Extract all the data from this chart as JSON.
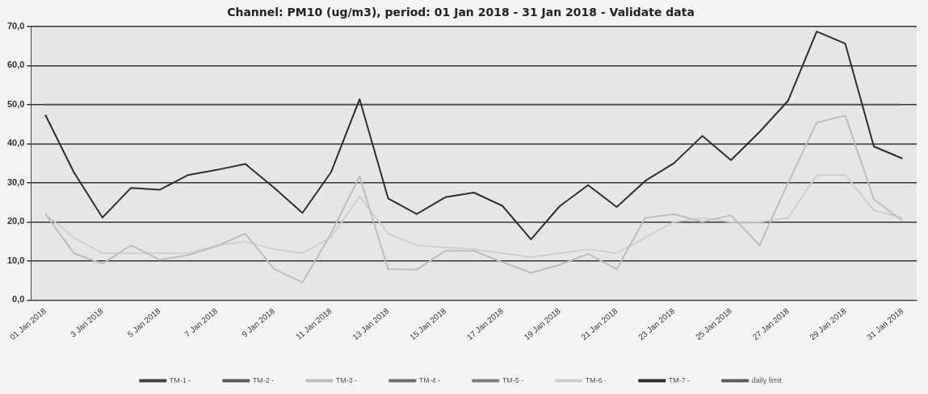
{
  "chart_data": {
    "type": "line",
    "title": "Channel: PM10 (ug/m3), period: 01 Jan 2018 - 31 Jan 2018 - Validate data",
    "categories": [
      "01 Jan 2018",
      null,
      "3 Jan 2018",
      null,
      "5 Jan 2018",
      null,
      "7 Jan 2018",
      null,
      "9 Jan 2018",
      null,
      "11 Jan 2018",
      null,
      "13 Jan 2018",
      null,
      "15 Jan 2018",
      null,
      "17 Jan 2018",
      null,
      "19 Jan 2018",
      null,
      "21 Jan 2018",
      null,
      "23 Jan 2018",
      null,
      "25 Jan 2018",
      null,
      "27 Jan 2018",
      null,
      "29 Jan 2018",
      null,
      "31 Jan 2018"
    ],
    "series": [
      {
        "name": "TM-1 -",
        "color": "#404040",
        "values": [
          null,
          null,
          null,
          null,
          null,
          null,
          null,
          null,
          null,
          null,
          null,
          null,
          null,
          null,
          null,
          null,
          null,
          null,
          null,
          null,
          null,
          null,
          null,
          null,
          null,
          null,
          null,
          null,
          null,
          null,
          null
        ]
      },
      {
        "name": "TM-2 -",
        "color": "#5a5a5a",
        "values": [
          null,
          null,
          null,
          null,
          null,
          null,
          null,
          null,
          null,
          null,
          null,
          null,
          null,
          null,
          null,
          null,
          null,
          null,
          null,
          null,
          null,
          null,
          null,
          null,
          null,
          null,
          null,
          null,
          null,
          null,
          null
        ]
      },
      {
        "name": "TM-3 -",
        "color": "#bdbdbd",
        "values": [
          22,
          12,
          9.3,
          14,
          10.3,
          11.5,
          13.8,
          17,
          8,
          4.5,
          17,
          31.7,
          7.9,
          7.8,
          12.6,
          12.6,
          9.7,
          7,
          9,
          11.8,
          7.9,
          21,
          22,
          20,
          21.7,
          14,
          30,
          45.4,
          47.2,
          25.8,
          20.3
        ]
      },
      {
        "name": "TM-4 -",
        "color": "#6e6e6e",
        "values": [
          null,
          null,
          null,
          null,
          null,
          null,
          null,
          null,
          null,
          null,
          null,
          null,
          null,
          null,
          null,
          null,
          null,
          null,
          null,
          null,
          null,
          null,
          null,
          null,
          null,
          null,
          null,
          null,
          null,
          null,
          null
        ]
      },
      {
        "name": "TM-5 -",
        "color": "#7e7e7e",
        "values": [
          null,
          null,
          null,
          null,
          null,
          null,
          null,
          null,
          null,
          null,
          null,
          null,
          null,
          null,
          null,
          null,
          null,
          null,
          null,
          null,
          null,
          null,
          null,
          null,
          null,
          null,
          null,
          null,
          null,
          null,
          null
        ]
      },
      {
        "name": "TM-6 -",
        "color": "#cfcfcf",
        "values": [
          22,
          16,
          12,
          12,
          12,
          12,
          14,
          15,
          13,
          12,
          16,
          26.5,
          17,
          14,
          13.5,
          13,
          12,
          11,
          12,
          13,
          12,
          16,
          20,
          21,
          20,
          20,
          21,
          32,
          32,
          23,
          21
        ]
      },
      {
        "name": "TM-7 -",
        "color": "#2e2e2e",
        "values": [
          47.4,
          32.7,
          21.1,
          28.7,
          28.2,
          32,
          33.3,
          34.8,
          28.8,
          22.3,
          32.7,
          51.4,
          26,
          22,
          26.3,
          27.5,
          24.1,
          15.5,
          24,
          29.4,
          23.8,
          30.5,
          35,
          42,
          35.8,
          43,
          51,
          68.7,
          65.6,
          39.3,
          36.2
        ]
      },
      {
        "name": "daily limit",
        "color": "#5c5c5c",
        "values": [
          50,
          50,
          50,
          50,
          50,
          50,
          50,
          50,
          50,
          50,
          50,
          50,
          50,
          50,
          50,
          50,
          50,
          50,
          50,
          50,
          50,
          50,
          50,
          50,
          50,
          50,
          50,
          50,
          50,
          50,
          50
        ]
      }
    ],
    "ylim": [
      0,
      70
    ],
    "yticks": [
      {
        "value": 0,
        "label": "0,0"
      },
      {
        "value": 10,
        "label": "10,0"
      },
      {
        "value": 20,
        "label": "20,0"
      },
      {
        "value": 30,
        "label": "30,0"
      },
      {
        "value": 40,
        "label": "40,0"
      },
      {
        "value": 50,
        "label": "50,0"
      },
      {
        "value": 60,
        "label": "60,0"
      },
      {
        "value": 70,
        "label": "70,0"
      }
    ],
    "grid": "y",
    "legend": "bottom",
    "marker": "none",
    "line_style": "solid"
  }
}
